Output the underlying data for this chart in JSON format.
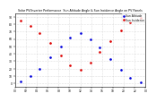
{
  "title": "Solar PV/Inverter Performance  Sun Altitude Angle & Sun Incidence Angle on PV Panels",
  "bg_color": "#ffffff",
  "grid_color": "#aaaaaa",
  "ylim": [
    -5,
    95
  ],
  "blue_label": "Sun Altitude",
  "red_label": "Sun Incidence",
  "blue_color": "#0000dd",
  "red_color": "#dd0000",
  "sun_altitude_x": [
    0.04,
    0.12,
    0.19,
    0.27,
    0.35,
    0.42,
    0.5,
    0.58,
    0.65,
    0.73,
    0.81,
    0.88,
    0.96
  ],
  "sun_altitude_y": [
    2,
    10,
    20,
    35,
    50,
    62,
    68,
    60,
    48,
    33,
    18,
    7,
    1
  ],
  "sun_incidence_x": [
    0.04,
    0.12,
    0.19,
    0.27,
    0.35,
    0.42,
    0.5,
    0.58,
    0.65,
    0.73,
    0.81,
    0.88,
    0.96
  ],
  "sun_incidence_y": [
    85,
    78,
    68,
    55,
    38,
    24,
    18,
    28,
    42,
    57,
    72,
    82,
    88
  ],
  "xtick_labels": [
    "00",
    "02",
    "04",
    "06",
    "08",
    "10",
    "12",
    "14",
    "16",
    "18",
    "20",
    "22",
    "00"
  ],
  "xtick_pos": [
    0.0,
    0.0833,
    0.1667,
    0.25,
    0.3333,
    0.4167,
    0.5,
    0.5833,
    0.6667,
    0.75,
    0.8333,
    0.9167,
    1.0
  ],
  "ytick_labels": [
    "0",
    "10",
    "20",
    "30",
    "40",
    "50",
    "60",
    "70",
    "80",
    "90"
  ],
  "ytick_pos": [
    0,
    10,
    20,
    30,
    40,
    50,
    60,
    70,
    80,
    90
  ],
  "legend_fontsize": 2.2,
  "title_fontsize": 2.3,
  "tick_fontsize": 2.2
}
